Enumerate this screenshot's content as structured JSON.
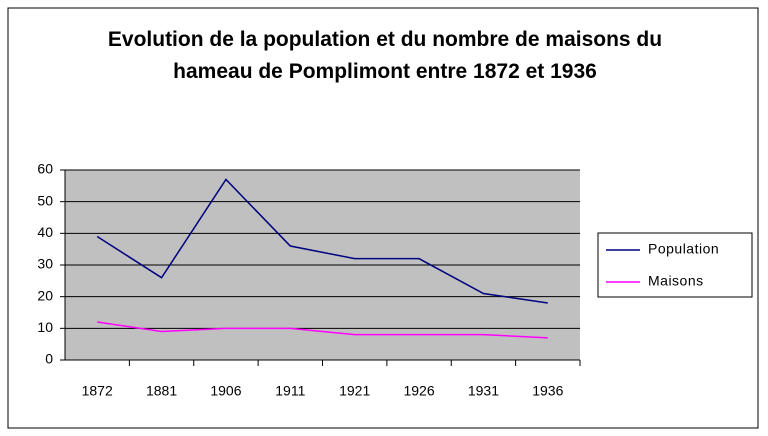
{
  "chart_data": {
    "type": "line",
    "title": "Evolution de la population et du nombre de maisons du hameau de Pomplimont entre 1872 et 1936",
    "categories": [
      "1872",
      "1881",
      "1906",
      "1911",
      "1921",
      "1926",
      "1931",
      "1936"
    ],
    "series": [
      {
        "name": "Population",
        "color": "#000080",
        "values": [
          39,
          26,
          57,
          36,
          32,
          32,
          21,
          18
        ]
      },
      {
        "name": "Maisons",
        "color": "#ff00ff",
        "values": [
          12,
          9,
          10,
          10,
          8,
          8,
          8,
          7
        ]
      }
    ],
    "ylim": [
      0,
      60
    ],
    "yticks": [
      0,
      10,
      20,
      30,
      40,
      50,
      60
    ],
    "grid": true,
    "legend": "right"
  }
}
